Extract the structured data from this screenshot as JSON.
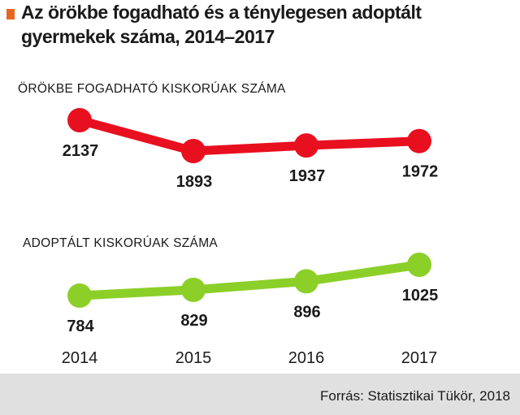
{
  "title": {
    "line1": "Az örökbe fogadható és a ténylegesen adoptált",
    "line2": "gyermekek száma, 2014–2017"
  },
  "colors": {
    "marker": "#e8671f",
    "series1": "#e8101f",
    "series2": "#8ccf29",
    "footer_bg": "#e0e0e0"
  },
  "source": "Forrás: Statisztikai Tükör, 2018",
  "chart_data": {
    "type": "line",
    "x": [
      "2014",
      "2015",
      "2016",
      "2017"
    ],
    "grid": false,
    "legend": "none",
    "series": [
      {
        "name": "ÖRÖKBE FOGADHATÓ KISKORÚAK SZÁMA",
        "values": [
          2137,
          1893,
          1937,
          1972
        ]
      },
      {
        "name": "ADOPTÁLT KISKORÚAK SZÁMA",
        "values": [
          784,
          829,
          896,
          1025
        ]
      }
    ]
  }
}
